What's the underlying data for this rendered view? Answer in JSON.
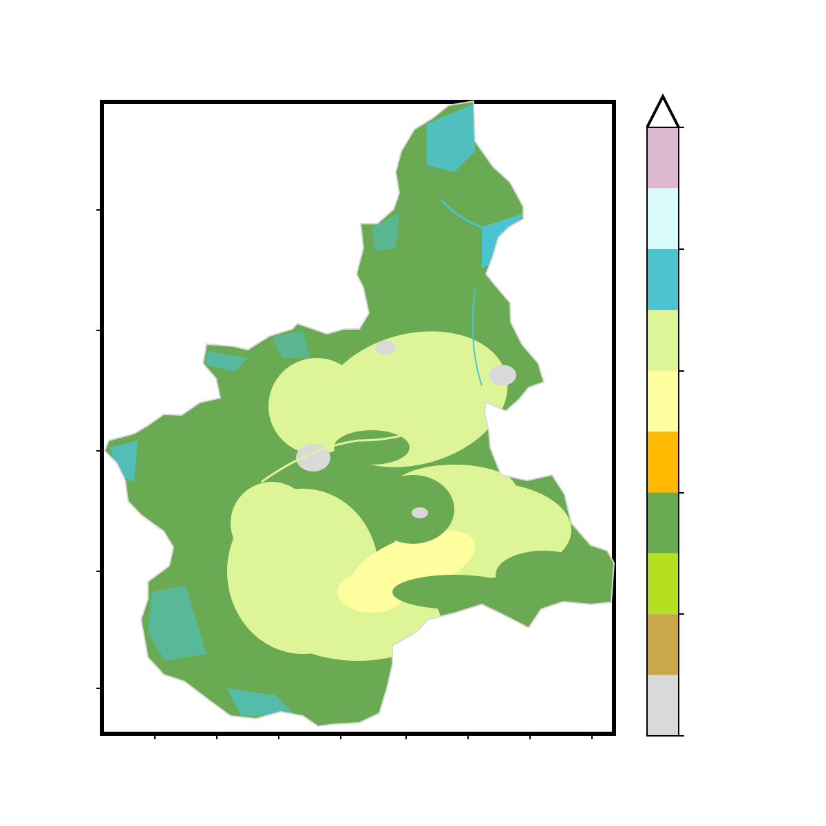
{
  "map": {
    "title": "",
    "corner_label": "",
    "xlabel": "",
    "xunit": "",
    "ylabel": "",
    "x_ticks": [
      "",
      "",
      "",
      "",
      "",
      "",
      "",
      ""
    ],
    "y_ticks": [
      "",
      "",
      "",
      "",
      ""
    ],
    "colorbar": {
      "label": "",
      "extend": "max",
      "classes": [
        {
          "color": "#d9d9d9"
        },
        {
          "color": "#c8a84a"
        },
        {
          "color": "#b5e01f"
        },
        {
          "color": "#6aaa52"
        },
        {
          "color": "#ffb900"
        },
        {
          "color": "#ffff9f"
        },
        {
          "color": "#ddf596"
        },
        {
          "color": "#4bc3d1"
        },
        {
          "color": "#d9fbf8"
        },
        {
          "color": "#dcb8cf"
        }
      ],
      "tick_labels": [
        "",
        "",
        "",
        "",
        "",
        ""
      ]
    }
  }
}
